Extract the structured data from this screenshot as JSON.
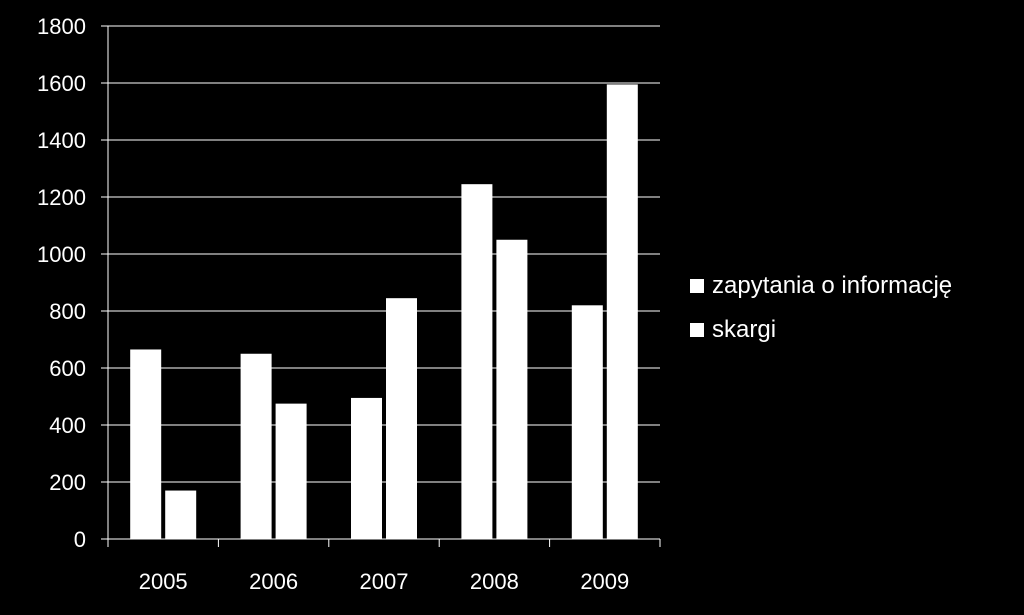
{
  "chart_data": {
    "type": "bar",
    "title": "",
    "xlabel": "",
    "ylabel": "",
    "categories": [
      "2005",
      "2006",
      "2007",
      "2008",
      "2009"
    ],
    "series": [
      {
        "name": "zapytania o informację",
        "values": [
          665,
          650,
          495,
          1245,
          820
        ]
      },
      {
        "name": "skargi",
        "values": [
          170,
          475,
          845,
          1050,
          1595
        ]
      }
    ],
    "ylim": [
      0,
      1800
    ],
    "yticks": [
      "0",
      "200",
      "400",
      "600",
      "800",
      "1000",
      "1200",
      "1400",
      "1600",
      "1800"
    ],
    "grid": true,
    "legend_position": "right",
    "colors": {
      "background": "#000000",
      "bars": "#ffffff",
      "gridlines": "#ffffff",
      "text": "#ffffff"
    }
  }
}
